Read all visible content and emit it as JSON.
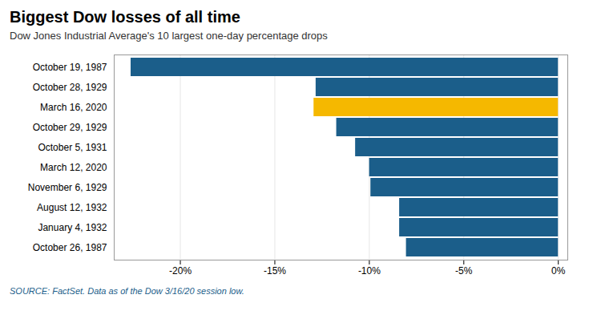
{
  "chart_data": {
    "type": "bar",
    "orientation": "horizontal",
    "title": "Biggest Dow losses of all time",
    "subtitle": "Dow Jones Industrial Average's 10 largest one-day percentage drops",
    "source": "SOURCE: FactSet. Data as of the Dow 3/16/20 session low.",
    "categories": [
      "October 26, 1987",
      "January 4, 1932",
      "August 12, 1932",
      "November 6, 1929",
      "March 12, 2020",
      "October 5, 1931",
      "October 29, 1929",
      "March 16, 2020",
      "October 28, 1929",
      "October 19, 1987"
    ],
    "values": [
      -8.04,
      -8.4,
      -8.4,
      -9.92,
      -9.99,
      -10.73,
      -11.73,
      -12.93,
      -12.82,
      -22.61
    ],
    "colors": [
      "#1B5E8A",
      "#1B5E8A",
      "#1B5E8A",
      "#1B5E8A",
      "#1B5E8A",
      "#1B5E8A",
      "#1B5E8A",
      "#F5B800",
      "#1B5E8A",
      "#1B5E8A"
    ],
    "xlim": [
      -23.5,
      0.5
    ],
    "xticks": [
      {
        "value": -20,
        "label": "-20%"
      },
      {
        "value": -15,
        "label": "-15%"
      },
      {
        "value": -10,
        "label": "-10%"
      },
      {
        "value": -5,
        "label": "-5%"
      },
      {
        "value": 0,
        "label": "0%"
      }
    ],
    "grid": true
  }
}
